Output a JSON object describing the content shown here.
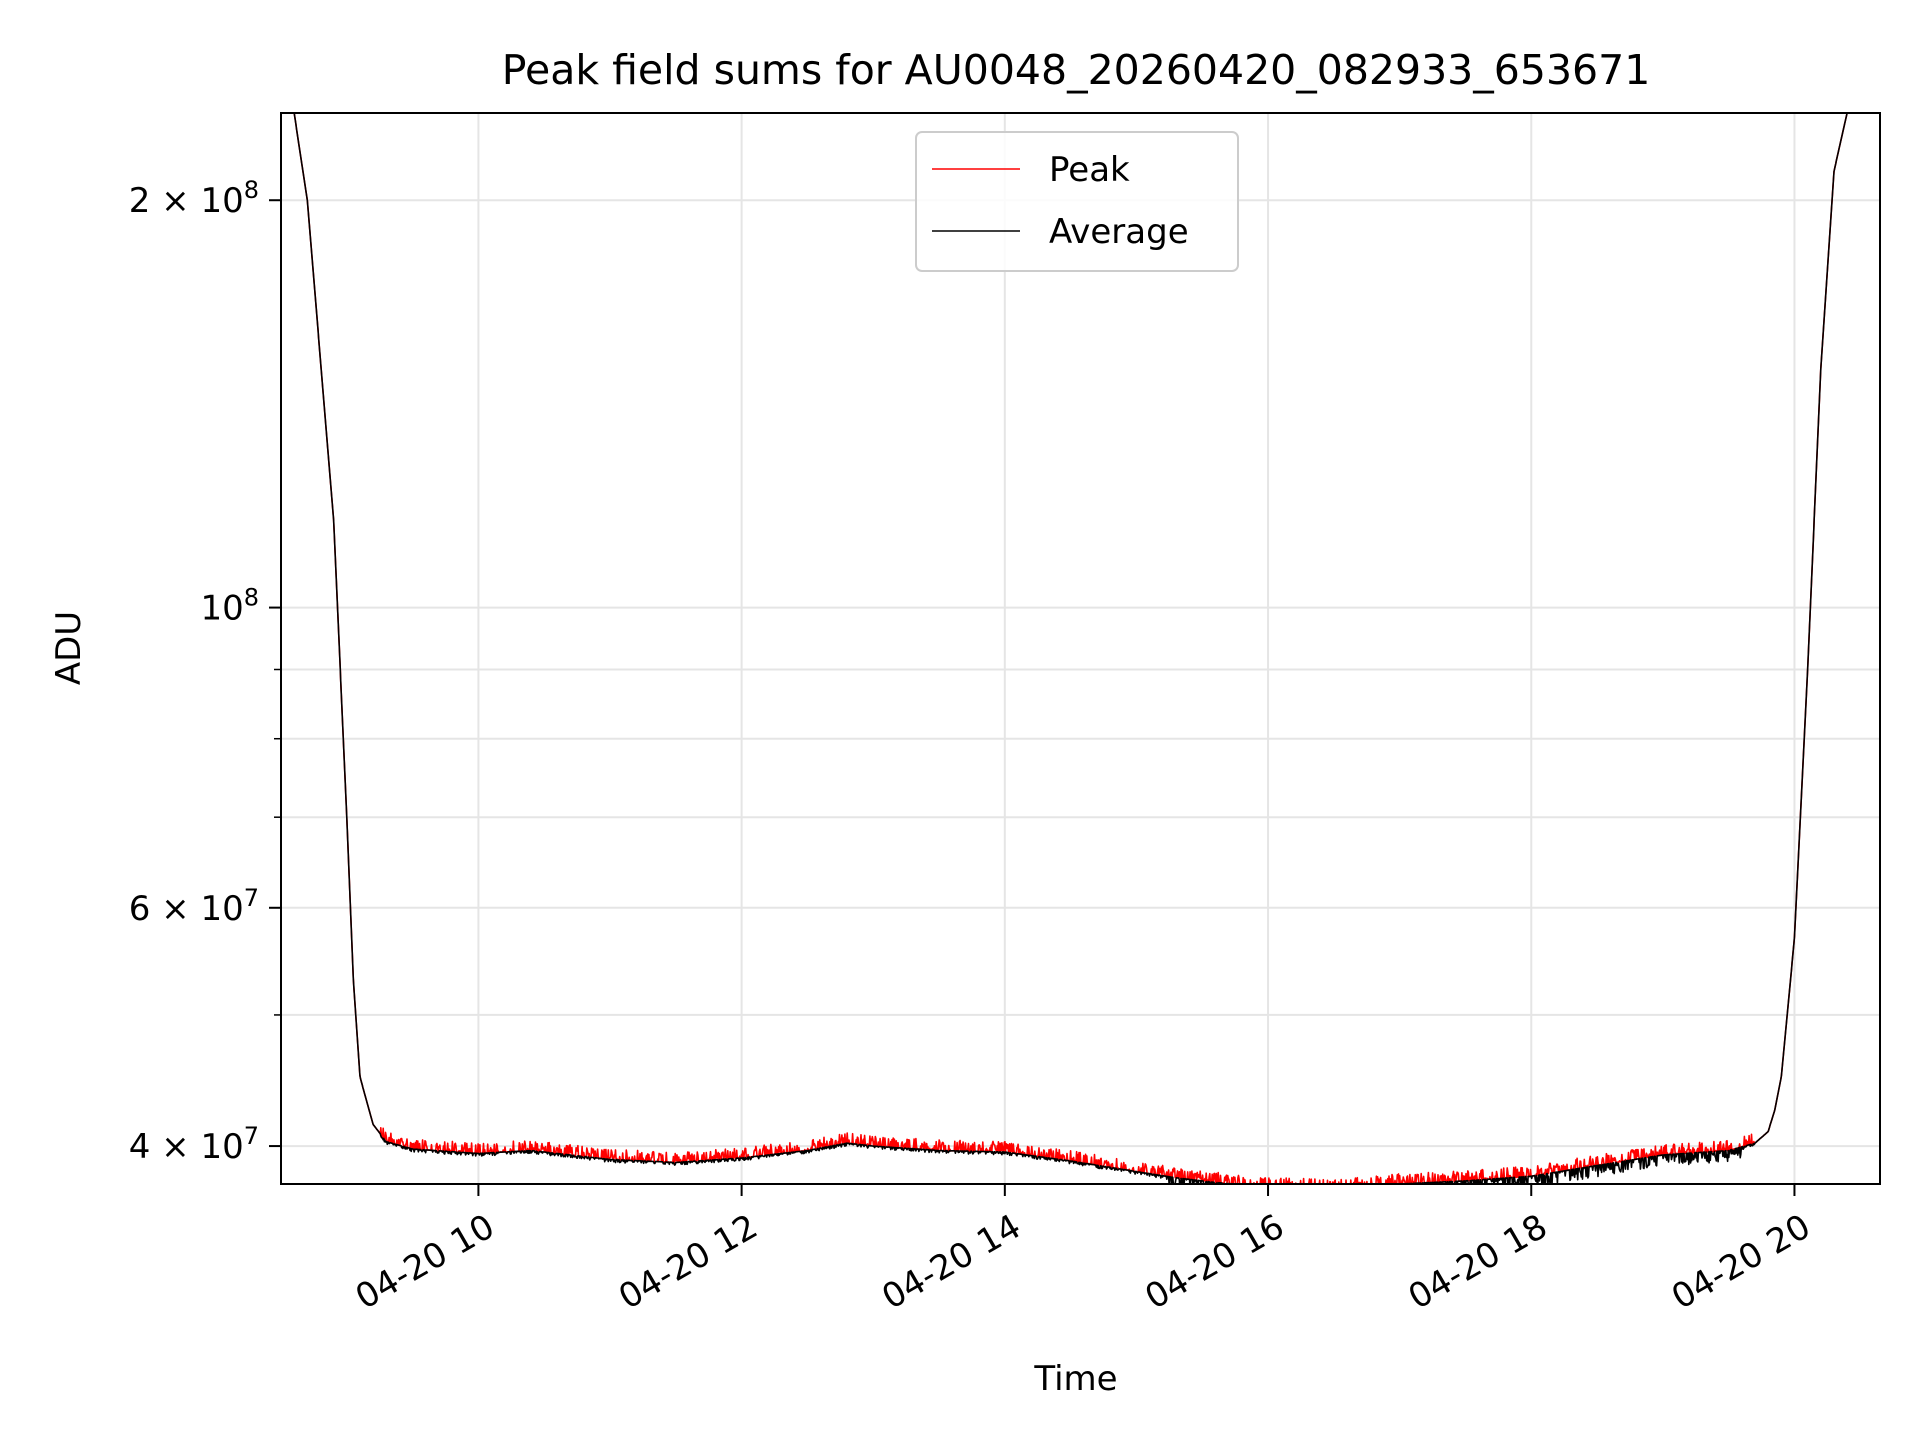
{
  "chart_data": {
    "type": "line",
    "title": "Peak field sums for AU0048_20260420_082933_653671",
    "xlabel": "Time",
    "ylabel": "ADU",
    "yscale": "log",
    "grid": true,
    "legend_position": "top-center",
    "xlim": [
      8.5,
      20.65
    ],
    "ylim": [
      37500000,
      232000000
    ],
    "x_ticks": [
      {
        "value": 10,
        "label": "04-20 10"
      },
      {
        "value": 12,
        "label": "04-20 12"
      },
      {
        "value": 14,
        "label": "04-20 14"
      },
      {
        "value": 16,
        "label": "04-20 16"
      },
      {
        "value": 18,
        "label": "04-20 18"
      },
      {
        "value": 20,
        "label": "04-20 20"
      }
    ],
    "y_major_ticks": [
      {
        "value": 40000000,
        "mantissa": "4",
        "exponent": "7"
      },
      {
        "value": 60000000,
        "mantissa": "6",
        "exponent": "7"
      },
      {
        "value": 100000000,
        "mantissa": "",
        "exponent": "8"
      },
      {
        "value": 200000000,
        "mantissa": "2",
        "exponent": "8"
      }
    ],
    "y_minor_ticks": [
      50000000,
      70000000,
      80000000,
      90000000
    ],
    "base_label": "10",
    "series": [
      {
        "name": "Peak",
        "color": "#ff0000",
        "noise_up": 0.018,
        "x": [
          8.6,
          8.7,
          8.9,
          9.0,
          9.05,
          9.1,
          9.2,
          9.3,
          9.5,
          10.0,
          10.4,
          11.0,
          11.5,
          12.0,
          12.5,
          12.8,
          13.0,
          13.5,
          14.0,
          14.5,
          15.0,
          15.3,
          15.6,
          16.0,
          16.5,
          17.0,
          17.5,
          18.0,
          18.5,
          19.0,
          19.5,
          19.7,
          19.8,
          19.85,
          19.9,
          20.0,
          20.1,
          20.2,
          20.3,
          20.4
        ],
        "y": [
          232000000,
          200000000,
          116000000,
          70000000,
          53000000,
          45000000,
          41500000,
          40300000,
          39800000,
          39500000,
          39700000,
          39100000,
          38900000,
          39200000,
          39700000,
          40200000,
          40000000,
          39700000,
          39600000,
          39000000,
          38300000,
          37900000,
          37600000,
          37300000,
          37100000,
          37500000,
          37700000,
          38000000,
          38700000,
          39400000,
          39700000,
          40200000,
          41000000,
          42500000,
          45000000,
          57000000,
          90000000,
          150000000,
          210000000,
          232000000
        ]
      },
      {
        "name": "Average",
        "color": "#000000",
        "noise_down": 0.012,
        "x": [
          8.6,
          8.7,
          8.9,
          9.0,
          9.05,
          9.1,
          9.2,
          9.3,
          9.5,
          10.0,
          10.4,
          11.0,
          11.5,
          12.0,
          12.5,
          12.8,
          13.0,
          13.5,
          14.0,
          14.5,
          15.0,
          15.3,
          15.6,
          16.0,
          16.5,
          17.0,
          17.5,
          18.0,
          18.5,
          19.0,
          19.5,
          19.7,
          19.8,
          19.85,
          19.9,
          20.0,
          20.1,
          20.2,
          20.3,
          20.4
        ],
        "y": [
          232000000,
          200000000,
          116000000,
          70000000,
          53000000,
          45000000,
          41500000,
          40300000,
          39800000,
          39500000,
          39700000,
          39100000,
          38900000,
          39200000,
          39700000,
          40200000,
          40000000,
          39700000,
          39600000,
          39000000,
          38300000,
          37900000,
          37600000,
          37300000,
          37100000,
          37500000,
          37700000,
          38000000,
          38700000,
          39400000,
          39700000,
          40200000,
          41000000,
          42500000,
          45000000,
          57000000,
          90000000,
          150000000,
          210000000,
          232000000
        ]
      }
    ]
  }
}
